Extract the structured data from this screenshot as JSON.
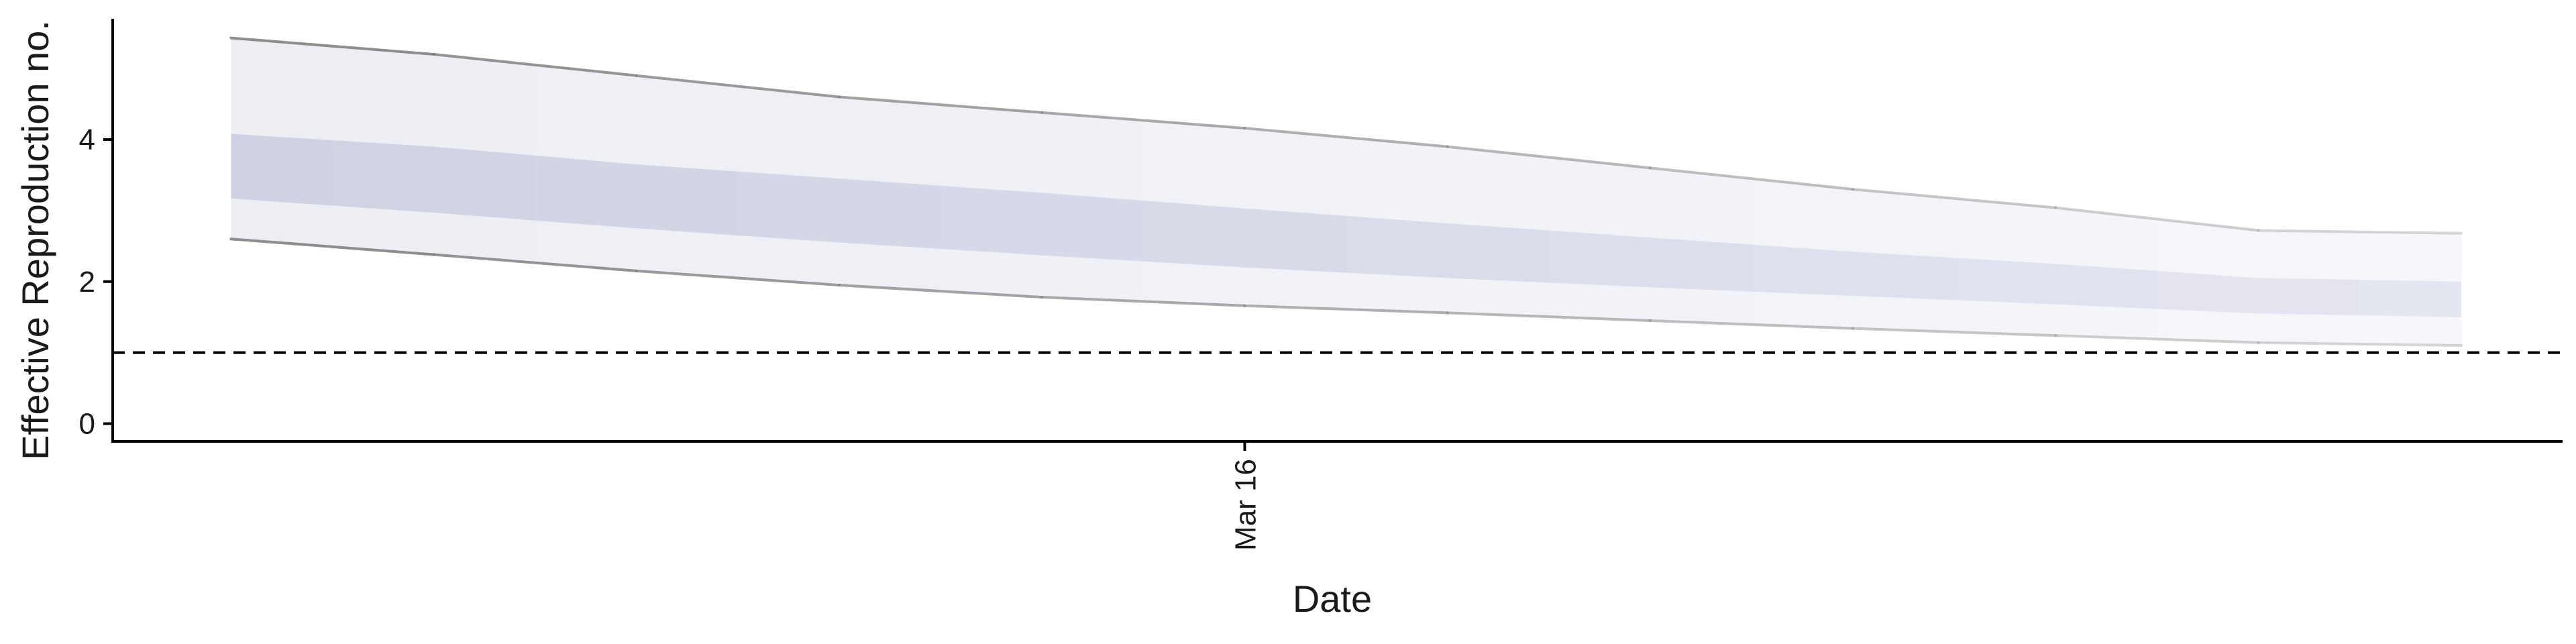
{
  "chart_data": {
    "type": "area",
    "title": "",
    "xlabel": "Date",
    "ylabel": "Effective Reproduction no.",
    "x_ticks": [
      {
        "label": "Mar 16",
        "date": "2020-03-16"
      }
    ],
    "y_ticks": [
      0,
      2,
      4
    ],
    "ylim": [
      -0.25,
      5.7
    ],
    "xlim": [
      "2020-03-10T10:00",
      "2020-03-22T12:00"
    ],
    "reference_line": {
      "y": 1,
      "style": "dashed"
    },
    "grid": false,
    "legend": "none",
    "x": [
      "2020-03-11",
      "2020-03-12",
      "2020-03-13",
      "2020-03-14",
      "2020-03-15",
      "2020-03-16",
      "2020-03-17",
      "2020-03-18",
      "2020-03-19",
      "2020-03-20",
      "2020-03-21",
      "2020-03-22"
    ],
    "series": [
      {
        "band": "outer",
        "lower": [
          2.6,
          2.38,
          2.15,
          1.95,
          1.78,
          1.66,
          1.56,
          1.45,
          1.34,
          1.24,
          1.14,
          1.1
        ],
        "upper": [
          5.43,
          5.2,
          4.9,
          4.6,
          4.38,
          4.16,
          3.9,
          3.6,
          3.3,
          3.04,
          2.72,
          2.68
        ]
      },
      {
        "band": "inner",
        "lower": [
          3.17,
          2.97,
          2.75,
          2.55,
          2.37,
          2.2,
          2.05,
          1.92,
          1.8,
          1.68,
          1.55,
          1.5
        ],
        "upper": [
          4.08,
          3.9,
          3.65,
          3.45,
          3.25,
          3.03,
          2.82,
          2.62,
          2.42,
          2.25,
          2.05,
          2.0
        ]
      }
    ],
    "colors": {
      "band": "#9ba2c4",
      "line": "#7a7a7a",
      "axis": "#000000"
    }
  }
}
